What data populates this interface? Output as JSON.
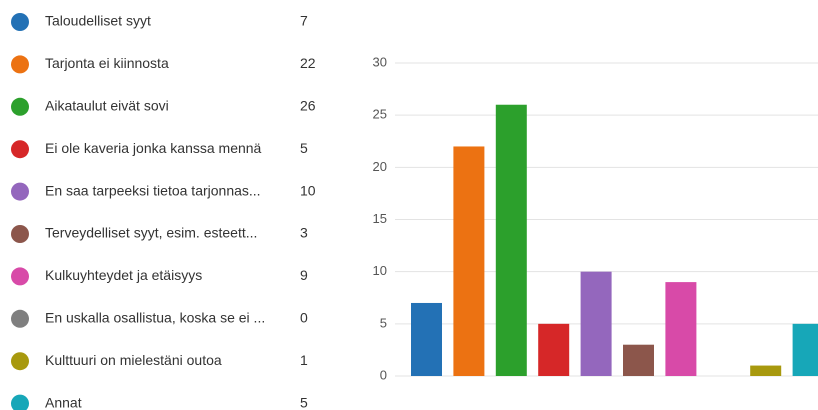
{
  "chart_data": {
    "type": "bar",
    "categories": [
      "Taloudelliset syyt",
      "Tarjonta ei kiinnosta",
      "Aikataulut eivät sovi",
      "Ei ole kaveria jonka kanssa mennä",
      "En saa tarpeeksi tietoa tarjonnas...",
      "Terveydelliset syyt, esim. esteett...",
      "Kulkuyhteydet ja etäisyys",
      "En uskalla osallistua, koska se ei ...",
      "Kulttuuri on mielestäni outoa",
      "Annat"
    ],
    "values": [
      7,
      22,
      26,
      5,
      10,
      3,
      9,
      0,
      1,
      5
    ],
    "colors": [
      "#2371b5",
      "#ec7212",
      "#2ca02c",
      "#d62728",
      "#9467bd",
      "#8c564b",
      "#d84aa8",
      "#7f7f7f",
      "#a8990e",
      "#17a7b8"
    ],
    "ylim": [
      0,
      30
    ],
    "yticks": [
      0,
      5,
      10,
      15,
      20,
      25,
      30
    ],
    "grid": true
  }
}
